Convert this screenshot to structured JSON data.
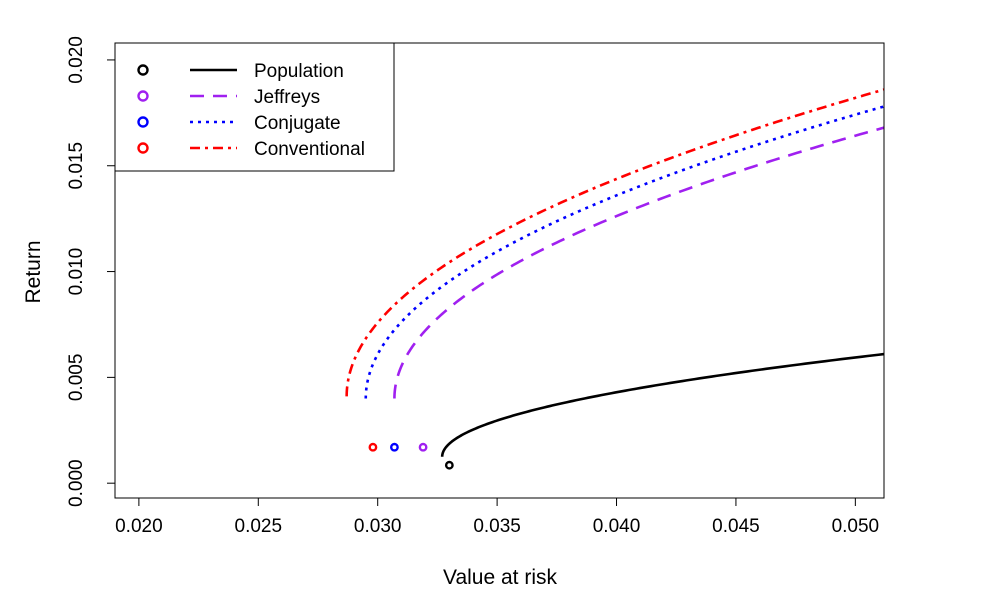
{
  "chart_data": {
    "type": "line",
    "title": "",
    "xlabel": "Value at risk",
    "ylabel": "Return",
    "xlim": [
      0.019,
      0.0512
    ],
    "ylim": [
      -0.0007,
      0.0208
    ],
    "x_ticks": [
      0.02,
      0.025,
      0.03,
      0.035,
      0.04,
      0.045,
      0.05
    ],
    "x_tick_labels": [
      "0.020",
      "0.025",
      "0.030",
      "0.035",
      "0.040",
      "0.045",
      "0.050"
    ],
    "y_ticks": [
      0.0,
      0.005,
      0.01,
      0.015,
      0.02
    ],
    "y_tick_labels": [
      "0.000",
      "0.005",
      "0.010",
      "0.015",
      "0.020"
    ],
    "grid": false,
    "legend_position": "top-left",
    "series": [
      {
        "name": "Population",
        "color": "#000000",
        "dash": "solid",
        "point": {
          "x": 0.033,
          "y": 0.00085
        },
        "curve": {
          "vertex_x": 0.0327,
          "vertex_y": 0.00125,
          "end_x": 0.0512,
          "end_y": 0.0061
        }
      },
      {
        "name": "Jeffreys",
        "color": "#a020f0",
        "dash": "dashed",
        "point": {
          "x": 0.0319,
          "y": 0.0017
        },
        "curve": {
          "vertex_x": 0.0307,
          "vertex_y": 0.004,
          "end_x": 0.0512,
          "end_y": 0.0168
        }
      },
      {
        "name": "Conjugate",
        "color": "#0000ff",
        "dash": "dotted",
        "point": {
          "x": 0.0307,
          "y": 0.0017
        },
        "curve": {
          "vertex_x": 0.0295,
          "vertex_y": 0.004,
          "end_x": 0.0512,
          "end_y": 0.0178
        }
      },
      {
        "name": "Conventional",
        "color": "#ff0000",
        "dash": "dotdash",
        "point": {
          "x": 0.0298,
          "y": 0.0017
        },
        "curve": {
          "vertex_x": 0.0287,
          "vertex_y": 0.0041,
          "end_x": 0.0512,
          "end_y": 0.0186
        }
      }
    ]
  }
}
